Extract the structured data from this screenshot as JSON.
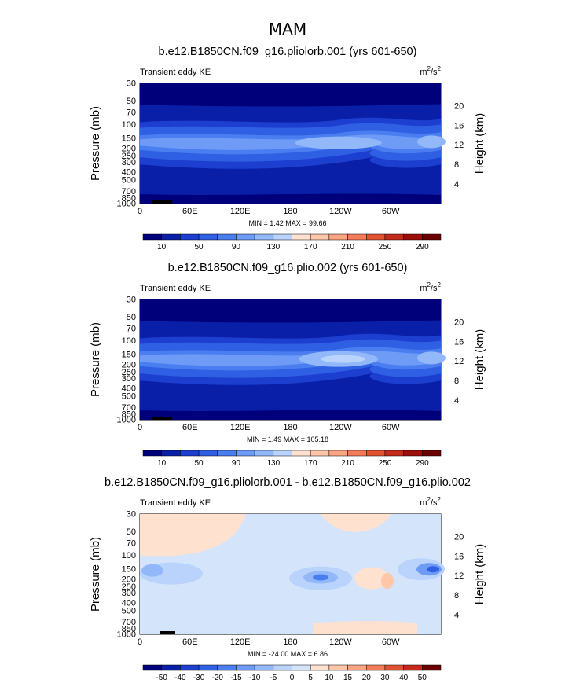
{
  "figure": {
    "season_title": "MAM"
  },
  "chart_data": [
    {
      "type": "heatmap",
      "title": "b.e12.B1850CN.f09_g16.pliolorb.001 (yrs 601-650)",
      "left_label": "Transient eddy KE",
      "units": "m²/s²",
      "units_base": "m",
      "units_exp1": "2",
      "units_mid": "/s",
      "units_exp2": "2",
      "ylabel": "Pressure (mb)",
      "ylabel2": "Height (km)",
      "x_tick_labels": [
        "0",
        "60E",
        "120E",
        "180",
        "120W",
        "60W"
      ],
      "y_tick_labels": [
        "30",
        "50",
        "70",
        "100",
        "150",
        "200",
        "250",
        "300",
        "400",
        "500",
        "700",
        "850",
        "1000"
      ],
      "height_tick_labels": [
        "20",
        "16",
        "12",
        "8",
        "4"
      ],
      "stats": {
        "min": 1.42,
        "max": 99.66
      },
      "stats_text": "MIN =    1.42   MAX =   99.66",
      "colorbar": {
        "labels": [
          "10",
          "50",
          "90",
          "130",
          "170",
          "210",
          "250",
          "290"
        ],
        "colors": [
          "#00007a",
          "#0a1fa8",
          "#1d3fcf",
          "#2f5fe3",
          "#4a7ef0",
          "#6d9bf6",
          "#93b8fa",
          "#b9d3fc",
          "#ffe1cf",
          "#ffc6a8",
          "#fba481",
          "#f27c58",
          "#e0522f",
          "#c4291a",
          "#9b0f0a",
          "#6b0000"
        ]
      },
      "field_levels": [
        0,
        1,
        2,
        3,
        4,
        5,
        6,
        7
      ]
    },
    {
      "type": "heatmap",
      "title": "b.e12.B1850CN.f09_g16.plio.002 (yrs 601-650)",
      "left_label": "Transient eddy KE",
      "units": "m²/s²",
      "units_base": "m",
      "units_exp1": "2",
      "units_mid": "/s",
      "units_exp2": "2",
      "ylabel": "Pressure (mb)",
      "ylabel2": "Height (km)",
      "x_tick_labels": [
        "0",
        "60E",
        "120E",
        "180",
        "120W",
        "60W"
      ],
      "y_tick_labels": [
        "30",
        "50",
        "70",
        "100",
        "150",
        "200",
        "250",
        "300",
        "400",
        "500",
        "700",
        "850",
        "1000"
      ],
      "height_tick_labels": [
        "20",
        "16",
        "12",
        "8",
        "4"
      ],
      "stats": {
        "min": 1.49,
        "max": 105.18
      },
      "stats_text": "MIN =    1.49   MAX =  105.18",
      "colorbar": {
        "labels": [
          "10",
          "50",
          "90",
          "130",
          "170",
          "210",
          "250",
          "290"
        ],
        "colors": [
          "#00007a",
          "#0a1fa8",
          "#1d3fcf",
          "#2f5fe3",
          "#4a7ef0",
          "#6d9bf6",
          "#93b8fa",
          "#b9d3fc",
          "#ffe1cf",
          "#ffc6a8",
          "#fba481",
          "#f27c58",
          "#e0522f",
          "#c4291a",
          "#9b0f0a",
          "#6b0000"
        ]
      },
      "field_levels": [
        0,
        1,
        2,
        3,
        4,
        5,
        6,
        8
      ]
    },
    {
      "type": "heatmap",
      "title": "b.e12.B1850CN.f09_g16.pliolorb.001 - b.e12.B1850CN.f09_g16.plio.002",
      "left_label": "Transient eddy KE",
      "units": "m²/s²",
      "units_base": "m",
      "units_exp1": "2",
      "units_mid": "/s",
      "units_exp2": "2",
      "ylabel": "Pressure (mb)",
      "ylabel2": "Height (km)",
      "x_tick_labels": [
        "0",
        "60E",
        "120E",
        "180",
        "120W",
        "60W"
      ],
      "y_tick_labels": [
        "30",
        "50",
        "70",
        "100",
        "150",
        "200",
        "250",
        "300",
        "400",
        "500",
        "700",
        "850",
        "1000"
      ],
      "height_tick_labels": [
        "20",
        "16",
        "12",
        "8",
        "4"
      ],
      "stats": {
        "min": -24.0,
        "max": 6.86
      },
      "stats_text": "MIN = -24.00   MAX =    6.86",
      "colorbar": {
        "labels": [
          "-50",
          "-40",
          "-30",
          "-20",
          "-15",
          "-10",
          "-5",
          "0",
          "5",
          "10",
          "15",
          "20",
          "30",
          "40",
          "50"
        ],
        "colors": [
          "#00007a",
          "#0a1fa8",
          "#1d3fcf",
          "#2f5fe3",
          "#4a7ef0",
          "#6d9bf6",
          "#93b8fa",
          "#b9d3fc",
          "#d4e5fb",
          "#ffe1cf",
          "#ffc6a8",
          "#fba481",
          "#f27c58",
          "#e0522f",
          "#c4291a",
          "#6b0000"
        ]
      },
      "field_levels": [
        -24,
        -15,
        -10,
        -5,
        0,
        5,
        6.86
      ]
    }
  ]
}
